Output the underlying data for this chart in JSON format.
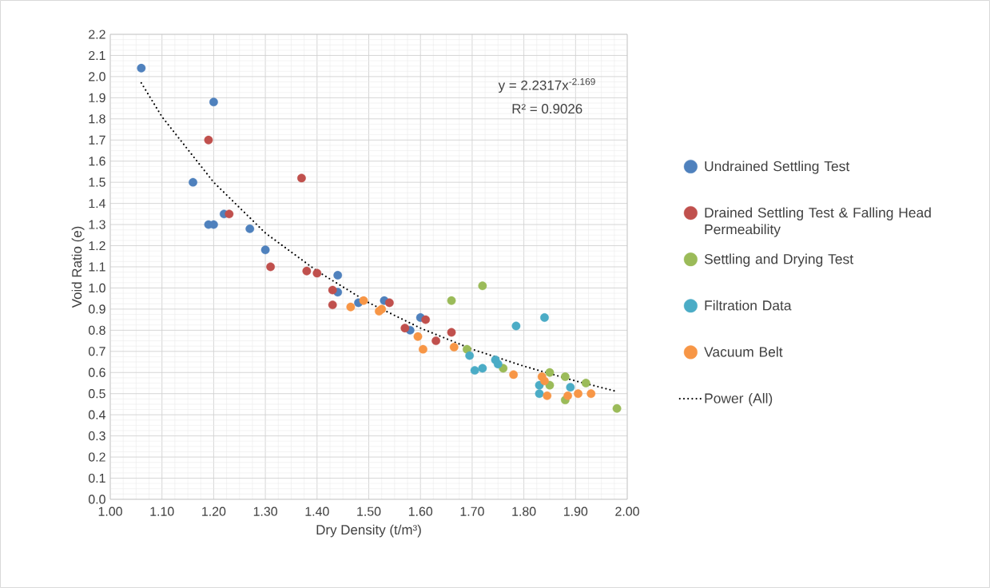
{
  "chart_data": {
    "type": "scatter",
    "xlabel": "Dry Density (t/m³)",
    "ylabel": "Void Ratio (e)",
    "xlim": [
      1.0,
      2.0
    ],
    "xticks": [
      {
        "value": 1.0,
        "label": "1.00"
      },
      {
        "value": 1.1,
        "label": "1.10"
      },
      {
        "value": 1.2,
        "label": "1.20"
      },
      {
        "value": 1.3,
        "label": "1.30"
      },
      {
        "value": 1.4,
        "label": "1.40"
      },
      {
        "value": 1.5,
        "label": "1.50"
      },
      {
        "value": 1.6,
        "label": "1.60"
      },
      {
        "value": 1.7,
        "label": "1.70"
      },
      {
        "value": 1.8,
        "label": "1.80"
      },
      {
        "value": 1.9,
        "label": "1.90"
      },
      {
        "value": 2.0,
        "label": "2.00"
      }
    ],
    "ylim": [
      0,
      2.2
    ],
    "yticks": [
      {
        "value": 0,
        "label": "0.0"
      },
      {
        "value": 0.1,
        "label": "0.1"
      },
      {
        "value": 0.2,
        "label": "0.2"
      },
      {
        "value": 0.3,
        "label": "0.3"
      },
      {
        "value": 0.4,
        "label": "0.4"
      },
      {
        "value": 0.5,
        "label": "0.5"
      },
      {
        "value": 0.6,
        "label": "0.6"
      },
      {
        "value": 0.7,
        "label": "0.7"
      },
      {
        "value": 0.8,
        "label": "0.8"
      },
      {
        "value": 0.9,
        "label": "0.9"
      },
      {
        "value": 1.0,
        "label": "1.0"
      },
      {
        "value": 1.1,
        "label": "1.1"
      },
      {
        "value": 1.2,
        "label": "1.2"
      },
      {
        "value": 1.3,
        "label": "1.3"
      },
      {
        "value": 1.4,
        "label": "1.4"
      },
      {
        "value": 1.5,
        "label": "1.5"
      },
      {
        "value": 1.6,
        "label": "1.6"
      },
      {
        "value": 1.7,
        "label": "1.7"
      },
      {
        "value": 1.8,
        "label": "1.8"
      },
      {
        "value": 1.9,
        "label": "1.9"
      },
      {
        "value": 2.0,
        "label": "2.0"
      },
      {
        "value": 2.1,
        "label": "2.1"
      },
      {
        "value": 2.2,
        "label": "2.2"
      }
    ],
    "grid": true,
    "legend": "right",
    "marker": "circle",
    "annotations": [
      "y = 2.2317x$^{-2.169}$",
      "R² = 0.9026"
    ],
    "series": [
      {
        "name": "Undrained Settling Test",
        "color": "#4f81bd",
        "x": [
          1.06,
          1.2,
          1.16,
          1.19,
          1.2,
          1.22,
          1.27,
          1.3,
          1.44,
          1.44,
          1.48,
          1.53,
          1.6,
          1.58
        ],
        "values": [
          2.04,
          1.88,
          1.5,
          1.3,
          1.3,
          1.35,
          1.28,
          1.18,
          1.06,
          0.98,
          0.93,
          0.94,
          0.86,
          0.8
        ]
      },
      {
        "name": "Drained Settling Test & Falling Head Permeability",
        "color": "#c0504d",
        "x": [
          1.19,
          1.23,
          1.37,
          1.31,
          1.38,
          1.4,
          1.43,
          1.43,
          1.54,
          1.57,
          1.61,
          1.63,
          1.66
        ],
        "values": [
          1.7,
          1.35,
          1.52,
          1.1,
          1.08,
          1.07,
          0.99,
          0.92,
          0.93,
          0.81,
          0.85,
          0.75,
          0.79
        ]
      },
      {
        "name": "Settling and Drying Test",
        "color": "#9bbb59",
        "x": [
          1.66,
          1.72,
          1.69,
          1.76,
          1.85,
          1.88,
          1.92,
          1.85,
          1.88,
          1.98
        ],
        "values": [
          0.94,
          1.01,
          0.71,
          0.62,
          0.6,
          0.58,
          0.55,
          0.54,
          0.47,
          0.43
        ]
      },
      {
        "name": "Filtration Data",
        "color": "#4bacc6",
        "x": [
          1.785,
          1.84,
          1.695,
          1.705,
          1.72,
          1.745,
          1.75,
          1.83,
          1.83,
          1.89
        ],
        "values": [
          0.82,
          0.86,
          0.68,
          0.61,
          0.62,
          0.66,
          0.64,
          0.54,
          0.5,
          0.53
        ]
      },
      {
        "name": "Vacuum Belt",
        "color": "#f79646",
        "x": [
          1.465,
          1.49,
          1.525,
          1.52,
          1.595,
          1.605,
          1.665,
          1.78,
          1.835,
          1.84,
          1.845,
          1.885,
          1.905,
          1.93
        ],
        "values": [
          0.91,
          0.94,
          0.9,
          0.89,
          0.77,
          0.71,
          0.72,
          0.59,
          0.58,
          0.56,
          0.49,
          0.49,
          0.5,
          0.5
        ]
      },
      {
        "name": "Power (All)",
        "type": "line",
        "color": "#000000",
        "marker": "none",
        "line_style": "dotted",
        "x": [
          1.06,
          1.1,
          1.2,
          1.3,
          1.4,
          1.5,
          1.6,
          1.7,
          1.8,
          1.9,
          1.98
        ],
        "values": [
          1.97,
          1.81,
          1.5,
          1.26,
          1.08,
          0.93,
          0.81,
          0.71,
          0.63,
          0.56,
          0.51
        ]
      }
    ]
  }
}
